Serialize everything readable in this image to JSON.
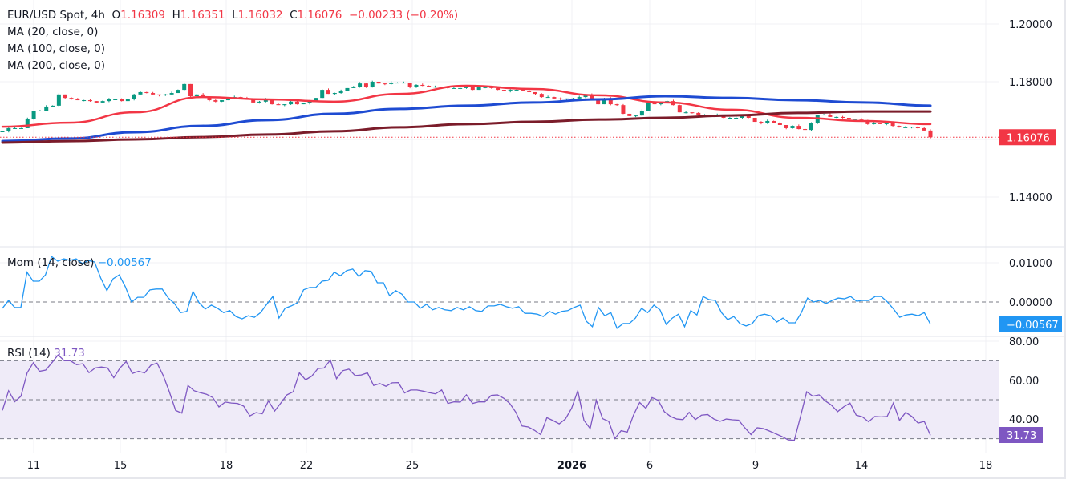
{
  "header": {
    "symbol": "EUR/USD Spot, 4h",
    "open_label": "O",
    "open": "1.16309",
    "high_label": "H",
    "high": "1.16351",
    "low_label": "L",
    "low": "1.16032",
    "close_label": "C",
    "close": "1.16076",
    "change": "−0.00233 (−0.20%)"
  },
  "indicators": {
    "ma20": "MA (20, close, 0)",
    "ma100": "MA (100, close, 0)",
    "ma200": "MA (200, close, 0)",
    "mom_label": "Mom (14, close)",
    "mom_value": "−0.00567",
    "rsi_label": "RSI (14)",
    "rsi_value": "31.73"
  },
  "colors": {
    "up": "#089981",
    "down": "#f23645",
    "ma20": "#f23645",
    "ma100": "#1e4bd2",
    "ma200": "#7b1c2a",
    "mom": "#2196f3",
    "rsi": "#7e57c2",
    "rsi_band": "#efebf8"
  },
  "chart_data": [
    {
      "type": "candlestick",
      "title": "EUR/USD Spot, 4h",
      "ylim": [
        1.12,
        1.21
      ],
      "y_ticks": [
        "1.20000",
        "1.18000",
        "1.14000"
      ],
      "last_price_label": "1.16076",
      "x_ticks": [
        "11",
        "15",
        "18",
        "22",
        "25",
        "2026",
        "6",
        "9",
        "14",
        "18"
      ],
      "closes": [
        1.1628,
        1.1639,
        1.1639,
        1.1639,
        1.1672,
        1.17,
        1.17,
        1.1714,
        1.1717,
        1.1756,
        1.1744,
        1.1739,
        1.1736,
        1.1736,
        1.1733,
        1.1728,
        1.1733,
        1.1739,
        1.1739,
        1.1733,
        1.1739,
        1.1756,
        1.1764,
        1.1761,
        1.1756,
        1.1753,
        1.1756,
        1.1761,
        1.1772,
        1.1792,
        1.175,
        1.1756,
        1.1747,
        1.1736,
        1.1731,
        1.1736,
        1.1744,
        1.1747,
        1.1744,
        1.1739,
        1.1728,
        1.1731,
        1.1739,
        1.1722,
        1.1719,
        1.1722,
        1.1731,
        1.1722,
        1.1725,
        1.1733,
        1.1744,
        1.1772,
        1.1758,
        1.1761,
        1.1769,
        1.1778,
        1.1783,
        1.1794,
        1.1781,
        1.18,
        1.1794,
        1.1792,
        1.1797,
        1.1797,
        1.1797,
        1.1781,
        1.1789,
        1.1786,
        1.1783,
        1.1783,
        1.1783,
        1.1778,
        1.1778,
        1.1778,
        1.1783,
        1.1772,
        1.1781,
        1.1781,
        1.1778,
        1.1772,
        1.1767,
        1.1772,
        1.1772,
        1.1769,
        1.1764,
        1.1758,
        1.1747,
        1.1747,
        1.1742,
        1.1739,
        1.1742,
        1.1742,
        1.1747,
        1.1756,
        1.1742,
        1.1722,
        1.1742,
        1.1722,
        1.1719,
        1.1689,
        1.1681,
        1.1683,
        1.17,
        1.1728,
        1.1722,
        1.1728,
        1.1733,
        1.1719,
        1.1694,
        1.1694,
        1.1692,
        1.1683,
        1.1683,
        1.1683,
        1.1686,
        1.1675,
        1.1675,
        1.1675,
        1.1681,
        1.1675,
        1.1661,
        1.1656,
        1.1664,
        1.1658,
        1.165,
        1.1639,
        1.1647,
        1.1636,
        1.1633,
        1.1656,
        1.1686,
        1.1686,
        1.1678,
        1.1678,
        1.1675,
        1.1669,
        1.1669,
        1.1667,
        1.1653,
        1.1656,
        1.1653,
        1.1658,
        1.1647,
        1.1642,
        1.1642,
        1.1644,
        1.1639,
        1.16309,
        1.16076
      ],
      "last_candle": {
        "open": 1.16309,
        "high": 1.16351,
        "low": 1.16032,
        "close": 1.16076
      },
      "series": [
        {
          "name": "MA (20, close, 0)",
          "values": [
            1.1644,
            1.1658,
            1.1694,
            1.1747,
            1.1739,
            1.1731,
            1.1758,
            1.1786,
            1.1775,
            1.1753,
            1.1728,
            1.1703,
            1.1675,
            1.1664,
            1.1653
          ]
        },
        {
          "name": "MA (100, close, 0)",
          "values": [
            1.1594,
            1.1603,
            1.1625,
            1.1647,
            1.1667,
            1.1689,
            1.1706,
            1.1717,
            1.1728,
            1.1739,
            1.175,
            1.1744,
            1.1736,
            1.1728,
            1.1717
          ]
        },
        {
          "name": "MA (200, close, 0)",
          "values": [
            1.1589,
            1.1594,
            1.16,
            1.1608,
            1.1617,
            1.1628,
            1.1642,
            1.1653,
            1.1661,
            1.1669,
            1.1675,
            1.1683,
            1.1692,
            1.1697,
            1.1697
          ]
        }
      ]
    },
    {
      "type": "line",
      "title": "Mom (14, close)",
      "ylim": [
        -0.009,
        0.0145
      ],
      "y_ticks": [
        "0.01000",
        "0.00000"
      ],
      "last_value_label": "−0.00567",
      "values": [
        -0.0016,
        0.0004,
        -0.0014,
        -0.0014,
        0.0076,
        0.0053,
        0.0053,
        0.0069,
        0.0116,
        0.0104,
        0.011,
        0.0106,
        0.011,
        0.0098,
        0.0106,
        0.0102,
        0.0061,
        0.0029,
        0.0059,
        0.0069,
        0.0039,
        0,
        0.0012,
        0.0012,
        0.0031,
        0.0033,
        0.0033,
        0.001,
        -0.0004,
        -0.0027,
        -0.0024,
        0.0027,
        -0.0002,
        -0.0018,
        -0.0008,
        -0.0016,
        -0.0027,
        -0.0022,
        -0.0037,
        -0.0043,
        -0.0035,
        -0.0039,
        -0.0027,
        -0.0006,
        0.0014,
        -0.0041,
        -0.0016,
        -0.001,
        -0.0002,
        0.0031,
        0.0037,
        0.0037,
        0.0053,
        0.0055,
        0.0076,
        0.0067,
        0.008,
        0.0084,
        0.0065,
        0.008,
        0.0078,
        0.0049,
        0.0049,
        0.0016,
        0.0029,
        0.002,
        0,
        0,
        -0.0016,
        -0.0006,
        -0.002,
        -0.0014,
        -0.002,
        -0.0022,
        -0.0014,
        -0.002,
        -0.0012,
        -0.0022,
        -0.0024,
        -0.001,
        -0.001,
        -0.0006,
        -0.0012,
        -0.0016,
        -0.0012,
        -0.0029,
        -0.0029,
        -0.0031,
        -0.0037,
        -0.0024,
        -0.0031,
        -0.0024,
        -0.0022,
        -0.0014,
        -0.0008,
        -0.0049,
        -0.0063,
        -0.0014,
        -0.0035,
        -0.0027,
        -0.0067,
        -0.0055,
        -0.0055,
        -0.0041,
        -0.0016,
        -0.0027,
        -0.0008,
        -0.002,
        -0.0057,
        -0.0041,
        -0.0031,
        -0.0063,
        -0.0022,
        -0.0033,
        0.0014,
        0.0006,
        0.0004,
        -0.0027,
        -0.0045,
        -0.0037,
        -0.0055,
        -0.0061,
        -0.0055,
        -0.0035,
        -0.0031,
        -0.0035,
        -0.0051,
        -0.0041,
        -0.0053,
        -0.0053,
        -0.0027,
        0.001,
        0,
        0.0004,
        -0.0004,
        0.0004,
        0.001,
        0.0008,
        0.0014,
        0.0002,
        0.0004,
        0.0004,
        0.0014,
        0.0014,
        0,
        -0.0018,
        -0.0039,
        -0.0033,
        -0.0031,
        -0.0035,
        -0.0027,
        -0.00567
      ]
    },
    {
      "type": "line",
      "title": "RSI (14)",
      "ylim": [
        25,
        81
      ],
      "y_ticks": [
        "80.00",
        "60.00",
        "40.00"
      ],
      "bands": [
        30,
        50,
        70
      ],
      "last_value_label": "31.73",
      "values": [
        44.5,
        54.6,
        49,
        51.8,
        63.8,
        69,
        64.6,
        65.2,
        69,
        73,
        70,
        70,
        68,
        68.5,
        63.9,
        66.3,
        66.8,
        66.3,
        61.3,
        66.3,
        69.6,
        63.5,
        64.6,
        63.8,
        67.7,
        68.8,
        62.4,
        53.9,
        44.5,
        43.1,
        57.3,
        54.6,
        53.6,
        52.8,
        51.1,
        46.3,
        48.8,
        48.3,
        48.1,
        46.7,
        41.7,
        43.4,
        42.8,
        49.4,
        44.2,
        48.3,
        52.5,
        54.1,
        63.8,
        60.2,
        62.1,
        66,
        66.3,
        70.4,
        60.8,
        64.9,
        65.7,
        62.4,
        62.7,
        63.8,
        57.3,
        58.3,
        56.9,
        58.7,
        58.8,
        53.5,
        55,
        55,
        54.4,
        53.6,
        53,
        55,
        48.1,
        48.9,
        48.8,
        52.5,
        48.1,
        48.9,
        48.9,
        52.2,
        52.5,
        50.8,
        48.1,
        43.5,
        36.5,
        36,
        34.3,
        32.1,
        40.8,
        39.3,
        37.6,
        40.1,
        45.6,
        54.6,
        39.4,
        35.2,
        49.7,
        40.3,
        38.9,
        30.1,
        34.1,
        33.4,
        42.1,
        48.6,
        45.6,
        51.1,
        49.7,
        43.8,
        41.4,
        40.1,
        39.8,
        43.5,
        39.8,
        42.1,
        42.4,
        40.1,
        38.9,
        40.1,
        39.7,
        39.5,
        35.6,
        32.1,
        35.6,
        35.2,
        33.9,
        32.5,
        31.1,
        29.4,
        29.2,
        41.4,
        54.1,
        51.8,
        52.5,
        49.4,
        47.2,
        43.9,
        46.4,
        48.3,
        42.1,
        41.2,
        38.7,
        41.4,
        41.2,
        41.4,
        48.3,
        39.4,
        43.5,
        41.4,
        38,
        38.9,
        31.73
      ]
    }
  ]
}
